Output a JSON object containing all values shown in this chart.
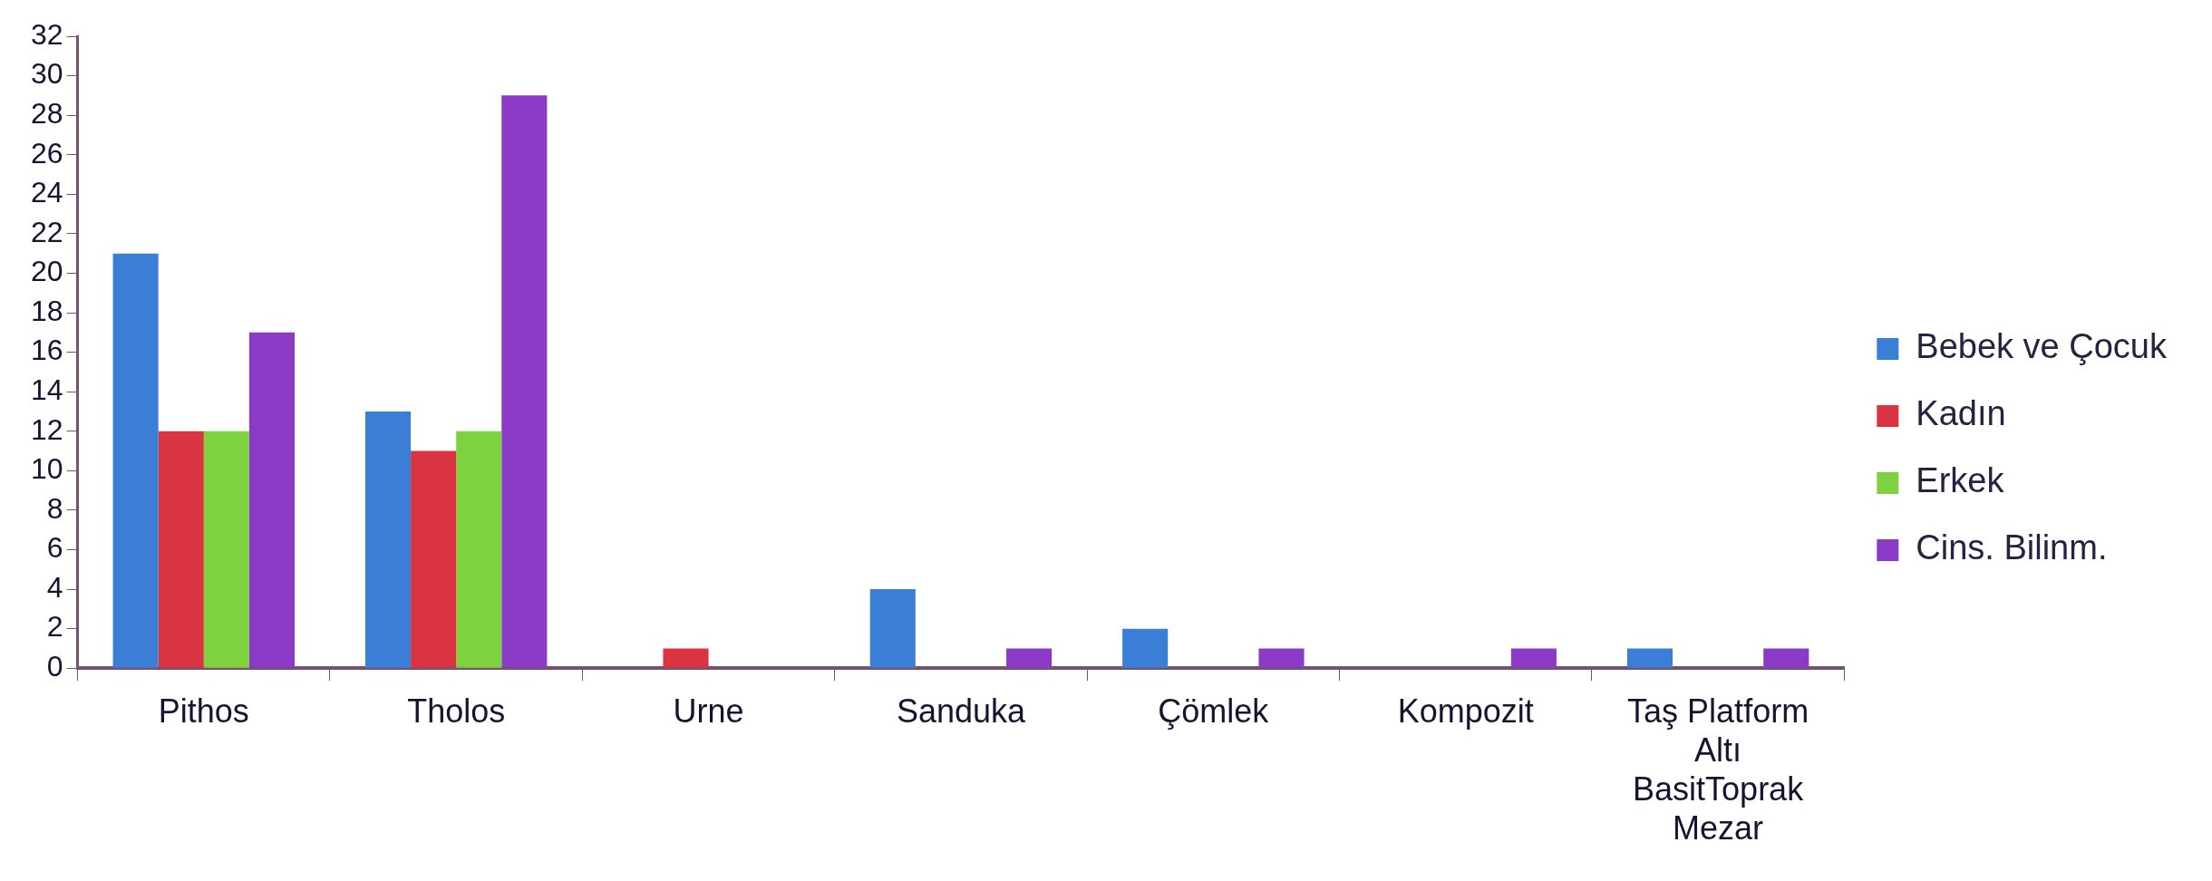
{
  "chart_data": {
    "type": "bar",
    "categories": [
      "Pithos",
      "Tholos",
      "Urne",
      "Sanduka",
      "Çömlek",
      "Kompozit",
      "Taş Platform Altı BasitToprak Mezar"
    ],
    "series": [
      {
        "name": "Bebek ve Çocuk",
        "color": "#3a7fd5",
        "values": [
          21,
          13,
          null,
          4,
          2,
          null,
          1
        ]
      },
      {
        "name": "Kadın",
        "color": "#d9343f",
        "values": [
          12,
          11,
          1,
          null,
          null,
          null,
          null
        ]
      },
      {
        "name": "Erkek",
        "color": "#7ed23f",
        "values": [
          12,
          12,
          null,
          null,
          null,
          null,
          null
        ]
      },
      {
        "name": "Cins. Bilinm.",
        "color": "#8b3ac8",
        "values": [
          17,
          29,
          null,
          1,
          1,
          1,
          1
        ]
      }
    ],
    "ylim": [
      0,
      32
    ],
    "yticks": [
      0,
      2,
      4,
      6,
      8,
      10,
      12,
      14,
      16,
      18,
      20,
      22,
      24,
      26,
      28,
      30,
      32
    ],
    "grid": false,
    "legend": "right"
  }
}
